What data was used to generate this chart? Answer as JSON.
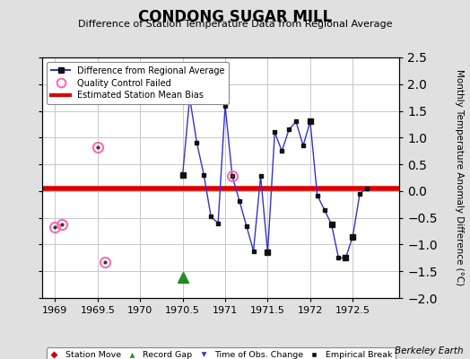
{
  "title": "CONDONG SUGAR MILL",
  "subtitle": "Difference of Station Temperature Data from Regional Average",
  "ylabel": "Monthly Temperature Anomaly Difference (°C)",
  "credit": "Berkeley Earth",
  "xlim": [
    1968.85,
    1973.05
  ],
  "ylim": [
    -2.0,
    2.5
  ],
  "yticks": [
    -2.0,
    -1.5,
    -1.0,
    -0.5,
    0.0,
    0.5,
    1.0,
    1.5,
    2.0,
    2.5
  ],
  "xticks": [
    1969,
    1969.5,
    1970,
    1970.5,
    1971,
    1971.5,
    1972,
    1972.5
  ],
  "xticklabels": [
    "1969",
    "1969.5",
    "1970",
    "1970.5",
    "1971",
    "1971.5",
    "1972",
    "1972.5"
  ],
  "background_color": "#e0e0e0",
  "plot_bg_color": "#ffffff",
  "grid_color": "#c8c8c8",
  "main_line_color": "#3333cc",
  "bias_line_color": "#dd0000",
  "bias_value": 0.05,
  "main_x": [
    1970.5,
    1970.583,
    1970.667,
    1970.75,
    1970.833,
    1970.917,
    1971.0,
    1971.083,
    1971.167,
    1971.25,
    1971.333,
    1971.417,
    1971.5,
    1971.583,
    1971.667,
    1971.75,
    1971.833,
    1971.917,
    1972.0,
    1972.083,
    1972.167,
    1972.25,
    1972.333,
    1972.417,
    1972.5,
    1972.583,
    1972.667
  ],
  "main_y": [
    0.3,
    1.75,
    0.9,
    0.3,
    -0.48,
    -0.6,
    1.6,
    0.28,
    -0.18,
    -0.65,
    -1.12,
    0.28,
    -1.15,
    1.1,
    0.75,
    1.15,
    1.3,
    0.85,
    1.3,
    -0.08,
    -0.35,
    -0.62,
    -1.25,
    -1.25,
    -0.85,
    -0.05,
    0.05
  ],
  "qc_failed_x": [
    1969.0,
    1969.08,
    1969.5,
    1969.583,
    1971.083
  ],
  "qc_failed_y": [
    -0.68,
    -0.62,
    0.82,
    -1.33,
    0.28
  ],
  "record_gap_x": [
    1970.5
  ],
  "record_gap_y": [
    -1.62
  ],
  "empirical_break_x": [
    1970.5,
    1971.5,
    1972.0,
    1972.25,
    1972.417,
    1972.5
  ],
  "empirical_break_y": [
    0.3,
    -1.15,
    1.3,
    -0.62,
    -1.25,
    -0.85
  ]
}
